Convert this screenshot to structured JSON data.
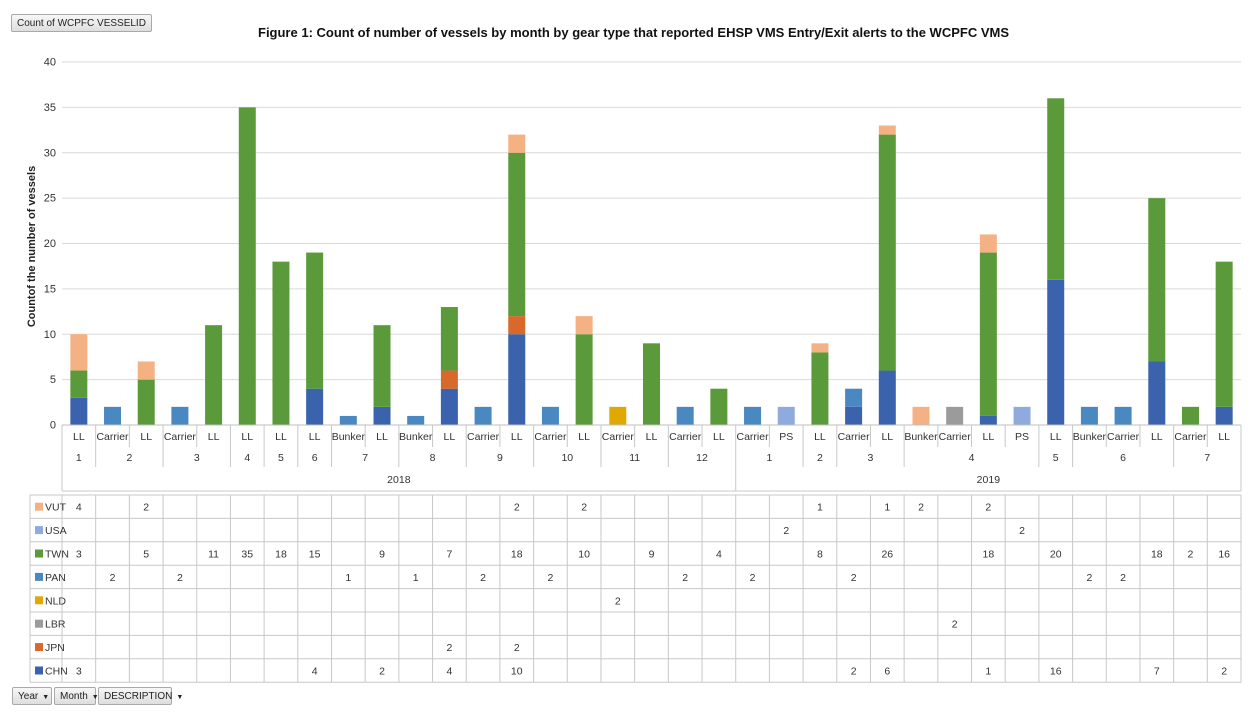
{
  "pivot": {
    "value_field": "Count of WCPFC VESSELID",
    "filters": [
      {
        "name": "year",
        "label": "Year",
        "icon": "dropdown-arrow-icon"
      },
      {
        "name": "month",
        "label": "Month",
        "icon": "dropdown-arrow-icon"
      },
      {
        "name": "description",
        "label": "DESCRIPTION",
        "icon": "dropdown-arrow-icon"
      }
    ]
  },
  "chart_data": {
    "type": "bar",
    "stacked": true,
    "title": "Figure 1:  Count of number of vessels by month by gear type that reported EHSP VMS Entry/Exit alerts to the WCPFC VMS",
    "ylabel": "Countof the number of vessels",
    "ylim": [
      0,
      40
    ],
    "yticks": [
      0,
      5,
      10,
      15,
      20,
      25,
      30,
      35,
      40
    ],
    "grid": true,
    "legend": "table-left",
    "categories": [
      {
        "gear": "LL",
        "month": "1",
        "year": "2018"
      },
      {
        "gear": "Carrier",
        "month": "2",
        "year": "2018"
      },
      {
        "gear": "LL",
        "month": "2",
        "year": "2018"
      },
      {
        "gear": "Carrier",
        "month": "3",
        "year": "2018"
      },
      {
        "gear": "LL",
        "month": "3",
        "year": "2018"
      },
      {
        "gear": "LL",
        "month": "4",
        "year": "2018"
      },
      {
        "gear": "LL",
        "month": "5",
        "year": "2018"
      },
      {
        "gear": "LL",
        "month": "6",
        "year": "2018"
      },
      {
        "gear": "Bunker",
        "month": "7",
        "year": "2018"
      },
      {
        "gear": "LL",
        "month": "7",
        "year": "2018"
      },
      {
        "gear": "Bunker",
        "month": "8",
        "year": "2018"
      },
      {
        "gear": "LL",
        "month": "8",
        "year": "2018"
      },
      {
        "gear": "Carrier",
        "month": "9",
        "year": "2018"
      },
      {
        "gear": "LL",
        "month": "9",
        "year": "2018"
      },
      {
        "gear": "Carrier",
        "month": "10",
        "year": "2018"
      },
      {
        "gear": "LL",
        "month": "10",
        "year": "2018"
      },
      {
        "gear": "Carrier",
        "month": "11",
        "year": "2018"
      },
      {
        "gear": "LL",
        "month": "11",
        "year": "2018"
      },
      {
        "gear": "Carrier",
        "month": "12",
        "year": "2018"
      },
      {
        "gear": "LL",
        "month": "12",
        "year": "2018"
      },
      {
        "gear": "Carrier",
        "month": "1",
        "year": "2019"
      },
      {
        "gear": "PS",
        "month": "1",
        "year": "2019"
      },
      {
        "gear": "LL",
        "month": "2",
        "year": "2019"
      },
      {
        "gear": "Carrier",
        "month": "3",
        "year": "2019"
      },
      {
        "gear": "LL",
        "month": "3",
        "year": "2019"
      },
      {
        "gear": "Bunker",
        "month": "4",
        "year": "2019"
      },
      {
        "gear": "Carrier",
        "month": "4",
        "year": "2019"
      },
      {
        "gear": "LL",
        "month": "4",
        "year": "2019"
      },
      {
        "gear": "PS",
        "month": "4",
        "year": "2019"
      },
      {
        "gear": "LL",
        "month": "5",
        "year": "2019"
      },
      {
        "gear": "Bunker",
        "month": "6",
        "year": "2019"
      },
      {
        "gear": "Carrier",
        "month": "6",
        "year": "2019"
      },
      {
        "gear": "LL",
        "month": "6",
        "year": "2019"
      },
      {
        "gear": "Carrier",
        "month": "7",
        "year": "2019"
      },
      {
        "gear": "LL",
        "month": "7",
        "year": "2019"
      }
    ],
    "series": [
      {
        "name": "VUT",
        "color": "#f4b183",
        "values": [
          4,
          null,
          2,
          null,
          null,
          null,
          null,
          null,
          null,
          null,
          null,
          null,
          null,
          2,
          null,
          2,
          null,
          null,
          null,
          null,
          null,
          null,
          1,
          null,
          1,
          2,
          null,
          2,
          null,
          null,
          null,
          null,
          null,
          null,
          null
        ]
      },
      {
        "name": "USA",
        "color": "#8faadc",
        "values": [
          null,
          null,
          null,
          null,
          null,
          null,
          null,
          null,
          null,
          null,
          null,
          null,
          null,
          null,
          null,
          null,
          null,
          null,
          null,
          null,
          null,
          2,
          null,
          null,
          null,
          null,
          null,
          null,
          2,
          null,
          null,
          null,
          null,
          null,
          null
        ]
      },
      {
        "name": "TWN",
        "color": "#5b9a3a",
        "values": [
          3,
          null,
          5,
          null,
          11,
          35,
          18,
          15,
          null,
          9,
          null,
          7,
          null,
          18,
          null,
          10,
          null,
          9,
          null,
          4,
          null,
          null,
          8,
          null,
          26,
          null,
          null,
          18,
          null,
          20,
          null,
          null,
          18,
          2,
          16
        ]
      },
      {
        "name": "PAN",
        "color": "#4a88c2",
        "values": [
          null,
          2,
          null,
          2,
          null,
          null,
          null,
          null,
          1,
          null,
          1,
          null,
          2,
          null,
          2,
          null,
          null,
          null,
          2,
          null,
          2,
          null,
          null,
          2,
          null,
          null,
          null,
          null,
          null,
          null,
          2,
          2,
          null,
          null,
          null
        ]
      },
      {
        "name": "NLD",
        "color": "#e0a800",
        "values": [
          null,
          null,
          null,
          null,
          null,
          null,
          null,
          null,
          null,
          null,
          null,
          null,
          null,
          null,
          null,
          null,
          2,
          null,
          null,
          null,
          null,
          null,
          null,
          null,
          null,
          null,
          null,
          null,
          null,
          null,
          null,
          null,
          null,
          null,
          null
        ]
      },
      {
        "name": "LBR",
        "color": "#9b9b9b",
        "values": [
          null,
          null,
          null,
          null,
          null,
          null,
          null,
          null,
          null,
          null,
          null,
          null,
          null,
          null,
          null,
          null,
          null,
          null,
          null,
          null,
          null,
          null,
          null,
          null,
          null,
          null,
          2,
          null,
          null,
          null,
          null,
          null,
          null,
          null,
          null
        ]
      },
      {
        "name": "JPN",
        "color": "#d9692a",
        "values": [
          null,
          null,
          null,
          null,
          null,
          null,
          null,
          null,
          null,
          null,
          null,
          2,
          null,
          2,
          null,
          null,
          null,
          null,
          null,
          null,
          null,
          null,
          null,
          null,
          null,
          null,
          null,
          null,
          null,
          null,
          null,
          null,
          null,
          null,
          null
        ]
      },
      {
        "name": "CHN",
        "color": "#3a62ad",
        "values": [
          3,
          null,
          null,
          null,
          null,
          null,
          null,
          4,
          null,
          2,
          null,
          4,
          null,
          10,
          null,
          null,
          null,
          null,
          null,
          null,
          null,
          null,
          null,
          2,
          6,
          null,
          null,
          1,
          null,
          16,
          null,
          null,
          7,
          null,
          2
        ]
      }
    ],
    "stack_order": [
      "CHN",
      "JPN",
      "LBR",
      "NLD",
      "PAN",
      "TWN",
      "USA",
      "VUT"
    ]
  }
}
